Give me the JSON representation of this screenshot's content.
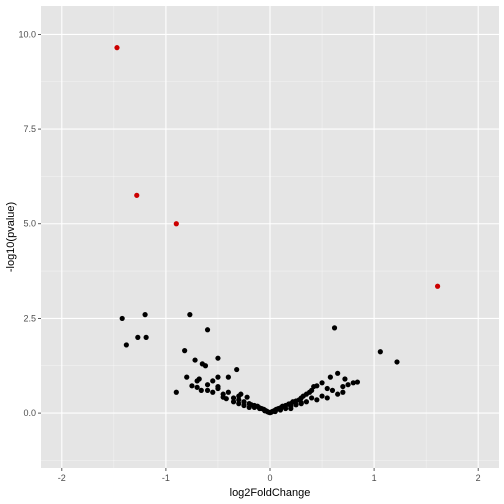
{
  "chart_data": {
    "type": "scatter",
    "title": "",
    "xlabel": "log2FoldChange",
    "ylabel": "-log10(pvalue)",
    "xlim": [
      -2.2,
      2.2
    ],
    "ylim": [
      -1.45,
      10.75
    ],
    "x_ticks": [
      -2,
      -1,
      0,
      1,
      2
    ],
    "y_ticks": [
      0.0,
      2.5,
      5.0,
      7.5,
      10.0
    ],
    "x_tick_labels": [
      "-2",
      "-1",
      "0",
      "1",
      "2"
    ],
    "y_tick_labels": [
      "0.0",
      "2.5",
      "5.0",
      "7.5",
      "10.0"
    ],
    "grid": true,
    "legend": "none",
    "colors": {
      "panel": "#e5e5e5",
      "grid_major": "#ffffff",
      "point": "#000000",
      "highlight": "#cc0000"
    },
    "series": [
      {
        "color": "#000000",
        "x": [
          -1.42,
          -1.38,
          -1.27,
          -1.2,
          -1.19,
          -0.9,
          -0.77,
          -0.6,
          -0.5,
          -0.62,
          -0.65,
          -0.72,
          -0.68,
          -0.55,
          -0.5,
          -0.82,
          -0.8,
          -0.75,
          -0.7,
          -0.66,
          -0.6,
          -0.55,
          -0.45,
          -0.32,
          -0.4,
          -0.45,
          -0.35,
          -0.3,
          -0.25,
          -0.2,
          -0.18,
          -0.15,
          -0.12,
          -0.1,
          -0.08,
          -0.06,
          -0.05,
          -0.04,
          -0.03,
          -0.02,
          -0.01,
          0.0,
          0.01,
          0.02,
          0.03,
          0.04,
          0.05,
          0.06,
          0.08,
          0.1,
          0.12,
          0.15,
          0.18,
          0.2,
          0.22,
          0.25,
          0.28,
          0.3,
          0.32,
          0.35,
          0.38,
          0.4,
          0.42,
          0.45,
          0.5,
          0.55,
          0.58,
          0.65,
          0.72,
          0.6,
          0.7,
          0.75,
          0.8,
          0.84,
          0.62,
          1.06,
          1.22,
          -0.5,
          -0.4,
          -0.3,
          -0.28,
          -0.22,
          -0.35,
          -0.42,
          -0.25,
          -0.15,
          -0.1,
          -0.05,
          0.05,
          0.1,
          0.15,
          0.2,
          0.25,
          0.3,
          0.35,
          0.45,
          0.5,
          0.55,
          0.65,
          0.7,
          0.4,
          0.3,
          0.2,
          0.1,
          -0.2,
          -0.3,
          -0.6,
          -0.5,
          -0.7
        ],
        "y": [
          2.5,
          1.8,
          2.0,
          2.6,
          2.0,
          0.55,
          2.6,
          2.2,
          1.45,
          1.25,
          1.3,
          1.4,
          0.9,
          0.85,
          0.95,
          1.65,
          0.95,
          0.72,
          0.68,
          0.6,
          0.6,
          0.55,
          0.5,
          1.15,
          0.95,
          0.42,
          0.4,
          0.35,
          0.3,
          0.25,
          0.22,
          0.2,
          0.18,
          0.14,
          0.12,
          0.1,
          0.08,
          0.06,
          0.05,
          0.03,
          0.02,
          0.01,
          0.02,
          0.04,
          0.05,
          0.06,
          0.08,
          0.1,
          0.12,
          0.14,
          0.18,
          0.2,
          0.24,
          0.25,
          0.3,
          0.32,
          0.35,
          0.4,
          0.45,
          0.5,
          0.55,
          0.6,
          0.7,
          0.72,
          0.8,
          0.65,
          0.95,
          1.05,
          0.9,
          0.6,
          0.7,
          0.75,
          0.8,
          0.82,
          2.25,
          1.62,
          1.35,
          0.65,
          0.55,
          0.45,
          0.5,
          0.42,
          0.3,
          0.38,
          0.2,
          0.15,
          0.12,
          0.06,
          0.04,
          0.08,
          0.12,
          0.18,
          0.22,
          0.28,
          0.3,
          0.35,
          0.45,
          0.4,
          0.5,
          0.55,
          0.4,
          0.25,
          0.12,
          0.1,
          0.15,
          0.25,
          0.75,
          0.7,
          0.85
        ]
      },
      {
        "color": "#cc0000",
        "x": [
          -1.47,
          -1.28,
          -0.9,
          1.61
        ],
        "y": [
          9.65,
          5.75,
          5.0,
          3.35
        ]
      }
    ]
  }
}
